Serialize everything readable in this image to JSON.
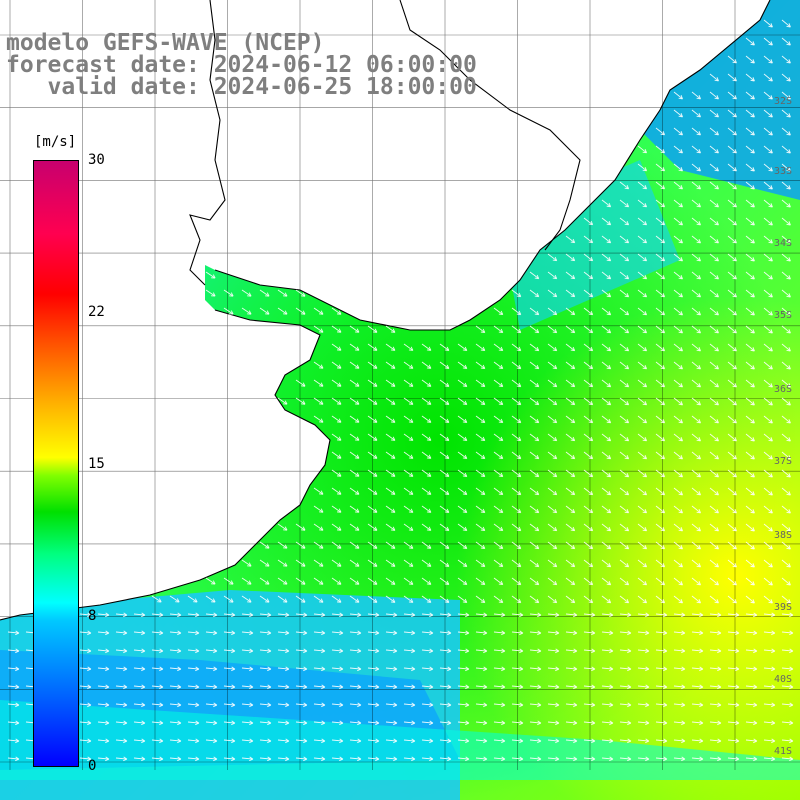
{
  "title": {
    "line1": "modelo GEFS-WAVE (NCEP)",
    "line2": "forecast date: 2024-06-12 06:00:00",
    "line3": "   valid date: 2024-06-25 18:00:00"
  },
  "colorbar": {
    "unit": "[m/s]",
    "min": 0,
    "max": 30,
    "ticks": [
      "30",
      "22",
      "15",
      "8",
      "0"
    ]
  },
  "latitude_labels": [
    "32S",
    "33S",
    "34S",
    "35S",
    "36S",
    "37S",
    "38S",
    "39S",
    "40S",
    "41S"
  ],
  "colors": {
    "land": "#ffffff",
    "grid": "#000000",
    "arrow": "#ffffff",
    "title": "#7f7f7f"
  }
}
